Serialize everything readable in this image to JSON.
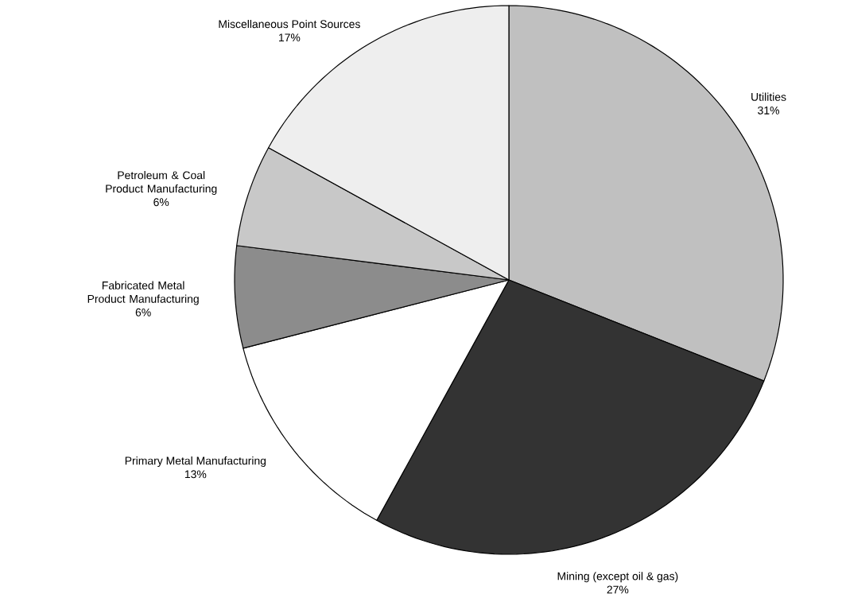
{
  "chart_data": {
    "type": "pie",
    "categories": [
      "Utilities",
      "Mining (except oil & gas)",
      "Primary Metal Manufacturing",
      "Fabricated Metal Product Manufacturing",
      "Petroleum & Coal Product Manufacturing",
      "Miscellaneous Point Sources"
    ],
    "values": [
      31,
      27,
      13,
      6,
      6,
      17
    ],
    "value_labels": [
      "31%",
      "27%",
      "13%",
      "6%",
      "6%",
      "17%"
    ],
    "colors": [
      "#c0c0c0",
      "#333333",
      "#ffffff",
      "#8c8c8c",
      "#c8c8c8",
      "#eeeeee"
    ]
  }
}
